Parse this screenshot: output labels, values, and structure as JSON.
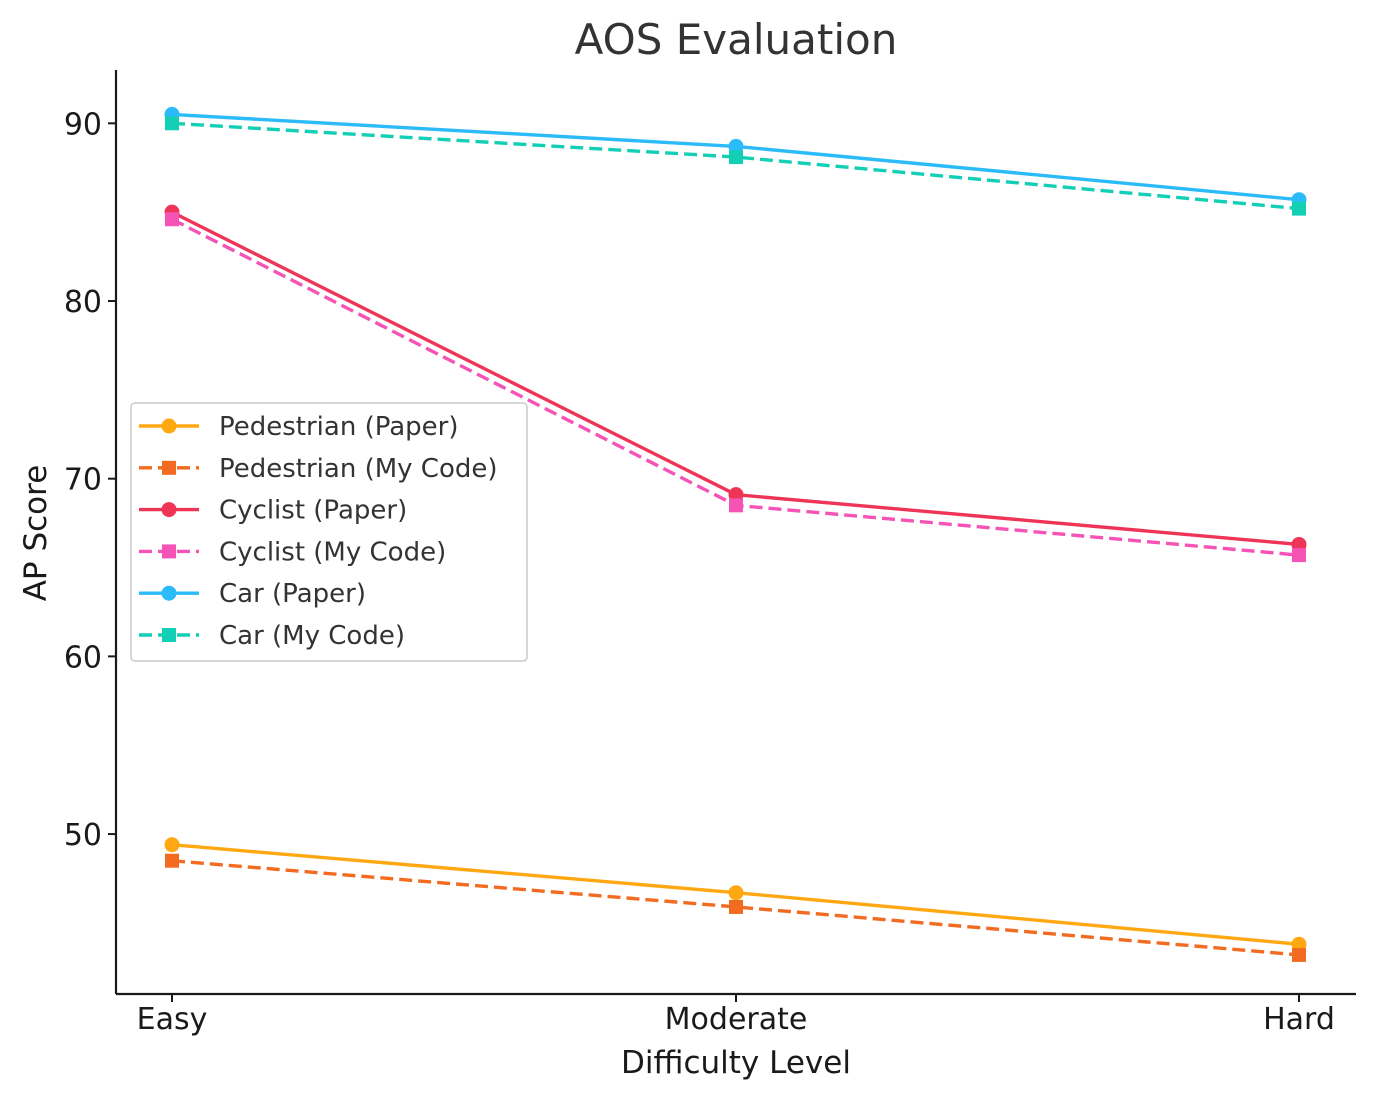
{
  "chart_data": {
    "type": "line",
    "title": "AOS Evaluation",
    "xlabel": "Difficulty Level",
    "ylabel": "AP Score",
    "categories": [
      "Easy",
      "Moderate",
      "Hard"
    ],
    "ylim": [
      41.0,
      93.0
    ],
    "yticks": [
      50,
      60,
      70,
      80,
      90
    ],
    "grid": false,
    "legend_position": "center-left",
    "series": [
      {
        "name": "Pedestrian (Paper)",
        "values": [
          49.4,
          46.7,
          43.8
        ],
        "color": "#ffa812",
        "dash": false,
        "marker": "circle"
      },
      {
        "name": "Pedestrian (My Code)",
        "values": [
          48.5,
          45.9,
          43.2
        ],
        "color": "#f26b21",
        "dash": true,
        "marker": "square"
      },
      {
        "name": "Cyclist (Paper)",
        "values": [
          85.0,
          69.1,
          66.3
        ],
        "color": "#ef3557",
        "dash": false,
        "marker": "circle"
      },
      {
        "name": "Cyclist (My Code)",
        "values": [
          84.6,
          68.5,
          65.7
        ],
        "color": "#f553b6",
        "dash": true,
        "marker": "square"
      },
      {
        "name": "Car (Paper)",
        "values": [
          90.5,
          88.7,
          85.7
        ],
        "color": "#2bbbf8",
        "dash": false,
        "marker": "circle"
      },
      {
        "name": "Car (My Code)",
        "values": [
          90.0,
          88.1,
          85.2
        ],
        "color": "#12cfb6",
        "dash": true,
        "marker": "square"
      }
    ]
  }
}
